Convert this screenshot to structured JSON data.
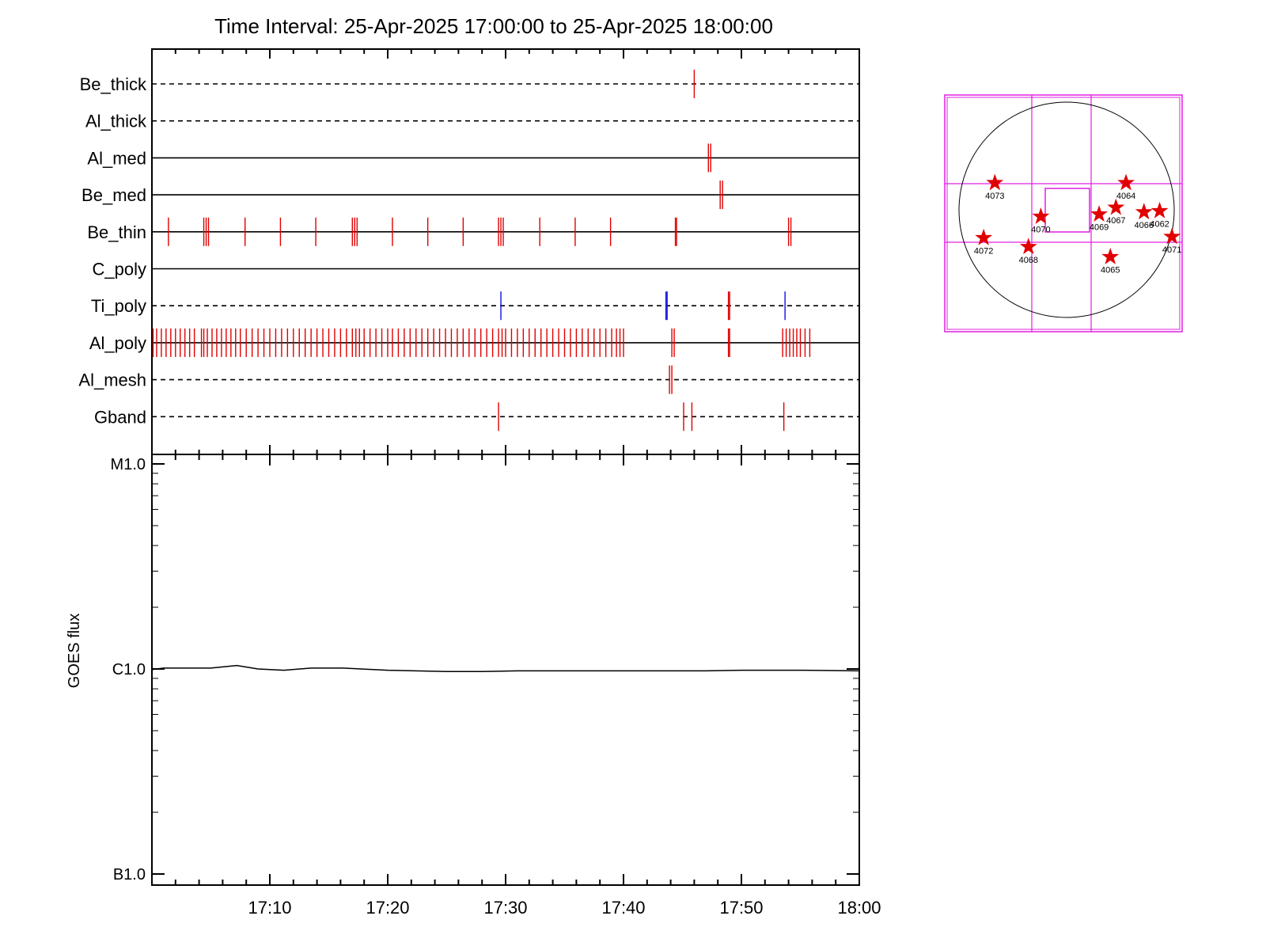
{
  "chart_data": [
    {
      "type": "event-timeline",
      "title": "Time Interval: 25-Apr-2025 17:00:00 to 25-Apr-2025 18:00:00",
      "x_range": [
        "17:00",
        "18:00"
      ],
      "channels": [
        {
          "name": "Be_thick",
          "line_style": "dashed",
          "events": [
            {
              "t": 46.0,
              "color": "#e00000"
            }
          ]
        },
        {
          "name": "Al_thick",
          "line_style": "dashed",
          "events": []
        },
        {
          "name": "Al_med",
          "line_style": "solid",
          "events": [
            {
              "t": 47.2,
              "color": "#e00000"
            },
            {
              "t": 47.4,
              "color": "#e00000"
            }
          ]
        },
        {
          "name": "Be_med",
          "line_style": "solid",
          "events": [
            {
              "t": 48.2,
              "color": "#e00000"
            },
            {
              "t": 48.4,
              "color": "#e00000"
            }
          ]
        },
        {
          "name": "Be_thin",
          "line_style": "solid",
          "events": [
            {
              "t": 1.4,
              "color": "#e00000"
            },
            {
              "t": 4.4,
              "color": "#e00000"
            },
            {
              "t": 4.6,
              "color": "#e00000"
            },
            {
              "t": 4.8,
              "color": "#e00000"
            },
            {
              "t": 7.9,
              "color": "#e00000"
            },
            {
              "t": 10.9,
              "color": "#e00000"
            },
            {
              "t": 13.9,
              "color": "#e00000"
            },
            {
              "t": 17.0,
              "color": "#e00000"
            },
            {
              "t": 17.2,
              "color": "#e00000"
            },
            {
              "t": 17.4,
              "color": "#e00000"
            },
            {
              "t": 20.4,
              "color": "#e00000"
            },
            {
              "t": 23.4,
              "color": "#e00000"
            },
            {
              "t": 26.4,
              "color": "#e00000"
            },
            {
              "t": 29.4,
              "color": "#e00000"
            },
            {
              "t": 29.6,
              "color": "#e00000"
            },
            {
              "t": 29.8,
              "color": "#e00000"
            },
            {
              "t": 32.9,
              "color": "#e00000"
            },
            {
              "t": 35.9,
              "color": "#e00000"
            },
            {
              "t": 38.9,
              "color": "#e00000"
            },
            {
              "t": 44.4,
              "color": "#e00000"
            },
            {
              "t": 44.5,
              "color": "#e00000"
            },
            {
              "t": 54.0,
              "color": "#e00000"
            },
            {
              "t": 54.2,
              "color": "#e00000"
            }
          ]
        },
        {
          "name": "C_poly",
          "line_style": "solid",
          "events": []
        },
        {
          "name": "Ti_poly",
          "line_style": "dashed",
          "events": [
            {
              "t": 29.6,
              "color": "#1010e0"
            },
            {
              "t": 43.6,
              "color": "#1010e0"
            },
            {
              "t": 43.7,
              "color": "#1010e0"
            },
            {
              "t": 48.9,
              "color": "#e00000"
            },
            {
              "t": 49.0,
              "color": "#e00000"
            },
            {
              "t": 53.7,
              "color": "#1010e0"
            }
          ]
        },
        {
          "name": "Al_poly",
          "line_style": "solid",
          "events": [
            {
              "t": 0.1,
              "color": "#e00000"
            },
            {
              "t": 0.4,
              "color": "#e00000"
            },
            {
              "t": 0.8,
              "color": "#e00000"
            },
            {
              "t": 1.2,
              "color": "#e00000"
            },
            {
              "t": 1.6,
              "color": "#e00000"
            },
            {
              "t": 2.0,
              "color": "#e00000"
            },
            {
              "t": 2.4,
              "color": "#e00000"
            },
            {
              "t": 2.8,
              "color": "#e00000"
            },
            {
              "t": 3.2,
              "color": "#e00000"
            },
            {
              "t": 3.6,
              "color": "#e00000"
            },
            {
              "t": 4.2,
              "color": "#e00000"
            },
            {
              "t": 4.4,
              "color": "#e00000"
            },
            {
              "t": 4.7,
              "color": "#e00000"
            },
            {
              "t": 5.1,
              "color": "#e00000"
            },
            {
              "t": 5.5,
              "color": "#e00000"
            },
            {
              "t": 5.9,
              "color": "#e00000"
            },
            {
              "t": 6.3,
              "color": "#e00000"
            },
            {
              "t": 6.7,
              "color": "#e00000"
            },
            {
              "t": 7.1,
              "color": "#e00000"
            },
            {
              "t": 7.5,
              "color": "#e00000"
            },
            {
              "t": 8.0,
              "color": "#e00000"
            },
            {
              "t": 8.5,
              "color": "#e00000"
            },
            {
              "t": 9.0,
              "color": "#e00000"
            },
            {
              "t": 9.5,
              "color": "#e00000"
            },
            {
              "t": 10.0,
              "color": "#e00000"
            },
            {
              "t": 10.5,
              "color": "#e00000"
            },
            {
              "t": 11.0,
              "color": "#e00000"
            },
            {
              "t": 11.5,
              "color": "#e00000"
            },
            {
              "t": 12.0,
              "color": "#e00000"
            },
            {
              "t": 12.5,
              "color": "#e00000"
            },
            {
              "t": 13.0,
              "color": "#e00000"
            },
            {
              "t": 13.5,
              "color": "#e00000"
            },
            {
              "t": 14.0,
              "color": "#e00000"
            },
            {
              "t": 14.5,
              "color": "#e00000"
            },
            {
              "t": 15.0,
              "color": "#e00000"
            },
            {
              "t": 15.5,
              "color": "#e00000"
            },
            {
              "t": 16.0,
              "color": "#e00000"
            },
            {
              "t": 16.5,
              "color": "#e00000"
            },
            {
              "t": 17.0,
              "color": "#e00000"
            },
            {
              "t": 17.3,
              "color": "#e00000"
            },
            {
              "t": 17.6,
              "color": "#e00000"
            },
            {
              "t": 18.0,
              "color": "#e00000"
            },
            {
              "t": 18.5,
              "color": "#e00000"
            },
            {
              "t": 19.0,
              "color": "#e00000"
            },
            {
              "t": 19.5,
              "color": "#e00000"
            },
            {
              "t": 20.0,
              "color": "#e00000"
            },
            {
              "t": 20.4,
              "color": "#e00000"
            },
            {
              "t": 20.9,
              "color": "#e00000"
            },
            {
              "t": 21.4,
              "color": "#e00000"
            },
            {
              "t": 21.9,
              "color": "#e00000"
            },
            {
              "t": 22.4,
              "color": "#e00000"
            },
            {
              "t": 22.9,
              "color": "#e00000"
            },
            {
              "t": 23.4,
              "color": "#e00000"
            },
            {
              "t": 23.9,
              "color": "#e00000"
            },
            {
              "t": 24.4,
              "color": "#e00000"
            },
            {
              "t": 24.9,
              "color": "#e00000"
            },
            {
              "t": 25.4,
              "color": "#e00000"
            },
            {
              "t": 25.9,
              "color": "#e00000"
            },
            {
              "t": 26.4,
              "color": "#e00000"
            },
            {
              "t": 26.9,
              "color": "#e00000"
            },
            {
              "t": 27.4,
              "color": "#e00000"
            },
            {
              "t": 27.9,
              "color": "#e00000"
            },
            {
              "t": 28.4,
              "color": "#e00000"
            },
            {
              "t": 28.9,
              "color": "#e00000"
            },
            {
              "t": 29.4,
              "color": "#e00000"
            },
            {
              "t": 29.7,
              "color": "#e00000"
            },
            {
              "t": 30.0,
              "color": "#e00000"
            },
            {
              "t": 30.5,
              "color": "#e00000"
            },
            {
              "t": 31.0,
              "color": "#e00000"
            },
            {
              "t": 31.5,
              "color": "#e00000"
            },
            {
              "t": 32.0,
              "color": "#e00000"
            },
            {
              "t": 32.5,
              "color": "#e00000"
            },
            {
              "t": 33.0,
              "color": "#e00000"
            },
            {
              "t": 33.5,
              "color": "#e00000"
            },
            {
              "t": 34.0,
              "color": "#e00000"
            },
            {
              "t": 34.5,
              "color": "#e00000"
            },
            {
              "t": 35.0,
              "color": "#e00000"
            },
            {
              "t": 35.5,
              "color": "#e00000"
            },
            {
              "t": 36.0,
              "color": "#e00000"
            },
            {
              "t": 36.5,
              "color": "#e00000"
            },
            {
              "t": 37.0,
              "color": "#e00000"
            },
            {
              "t": 37.5,
              "color": "#e00000"
            },
            {
              "t": 38.0,
              "color": "#e00000"
            },
            {
              "t": 38.5,
              "color": "#e00000"
            },
            {
              "t": 39.0,
              "color": "#e00000"
            },
            {
              "t": 39.4,
              "color": "#e00000"
            },
            {
              "t": 39.7,
              "color": "#e00000"
            },
            {
              "t": 40.0,
              "color": "#e00000"
            },
            {
              "t": 44.1,
              "color": "#e00000"
            },
            {
              "t": 44.3,
              "color": "#e00000"
            },
            {
              "t": 48.9,
              "color": "#e00000"
            },
            {
              "t": 49.0,
              "color": "#e00000"
            },
            {
              "t": 53.5,
              "color": "#e00000"
            },
            {
              "t": 53.8,
              "color": "#e00000"
            },
            {
              "t": 54.1,
              "color": "#e00000"
            },
            {
              "t": 54.4,
              "color": "#e00000"
            },
            {
              "t": 54.7,
              "color": "#e00000"
            },
            {
              "t": 55.0,
              "color": "#e00000"
            },
            {
              "t": 55.4,
              "color": "#e00000"
            },
            {
              "t": 55.8,
              "color": "#e00000"
            }
          ]
        },
        {
          "name": "Al_mesh",
          "line_style": "dashed",
          "events": [
            {
              "t": 43.9,
              "color": "#e00000"
            },
            {
              "t": 44.1,
              "color": "#e00000"
            }
          ]
        },
        {
          "name": "Gband",
          "line_style": "dashed",
          "events": [
            {
              "t": 29.4,
              "color": "#e00000"
            },
            {
              "t": 45.1,
              "color": "#e00000"
            },
            {
              "t": 45.8,
              "color": "#e00000"
            },
            {
              "t": 53.6,
              "color": "#e00000"
            }
          ]
        }
      ]
    },
    {
      "type": "line",
      "ylabel": "GOES flux",
      "y_scale": "log",
      "ylim": [
        1e-07,
        1e-05
      ],
      "y_ticks": [
        {
          "value": 1e-05,
          "label": "M1.0"
        },
        {
          "value": 1e-06,
          "label": "C1.0"
        },
        {
          "value": 1e-07,
          "label": "B1.0"
        }
      ],
      "x_ticks": [
        {
          "t": 10,
          "label": "17:10"
        },
        {
          "t": 20,
          "label": "17:20"
        },
        {
          "t": 30,
          "label": "17:30"
        },
        {
          "t": 40,
          "label": "17:40"
        },
        {
          "t": 50,
          "label": "17:50"
        },
        {
          "t": 60,
          "label": "18:00"
        }
      ],
      "series": [
        {
          "color": "#000000",
          "x": [
            0,
            1,
            5,
            7.2,
            9,
            11.2,
            13.5,
            16.2,
            20,
            25,
            28,
            31,
            35,
            40,
            44.5,
            47,
            50,
            55,
            60
          ],
          "values": [
            9.93e-07,
            1.01e-06,
            1.01e-06,
            1.04e-06,
            1e-06,
            9.86e-07,
            1.01e-06,
            1.01e-06,
            9.86e-07,
            9.72e-07,
            9.72e-07,
            9.79e-07,
            9.79e-07,
            9.79e-07,
            9.79e-07,
            9.79e-07,
            9.86e-07,
            9.86e-07,
            9.79e-07
          ]
        }
      ]
    },
    {
      "type": "scatter",
      "disk": {
        "center": [
          0,
          0
        ],
        "radius": 960
      },
      "regions": [
        {
          "label": "4073",
          "x": -640,
          "y": 240
        },
        {
          "label": "4064",
          "x": 530,
          "y": 240
        },
        {
          "label": "4067",
          "x": 440,
          "y": 20
        },
        {
          "label": "4069",
          "x": 290,
          "y": -40
        },
        {
          "label": "4066",
          "x": 690,
          "y": -20
        },
        {
          "label": "4062",
          "x": 830,
          "y": -10
        },
        {
          "label": "4070",
          "x": -230,
          "y": -60
        },
        {
          "label": "4072",
          "x": -740,
          "y": -250
        },
        {
          "label": "4071",
          "x": 940,
          "y": -240
        },
        {
          "label": "4068",
          "x": -340,
          "y": -330
        },
        {
          "label": "4065",
          "x": 390,
          "y": -420
        }
      ],
      "marker_color": "#e00000",
      "fov_color": "#e020e0"
    }
  ]
}
